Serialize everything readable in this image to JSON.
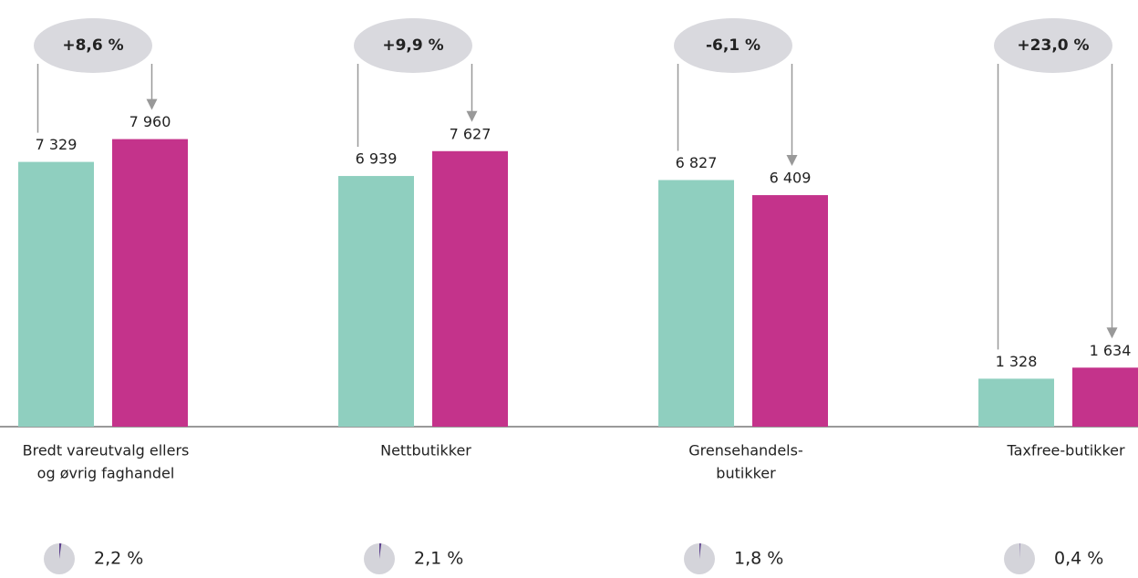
{
  "chart_data": {
    "type": "bar",
    "categories": [
      [
        "Bredt vareutvalg ellers",
        "og øvrig faghandel"
      ],
      [
        "Nettbutikker"
      ],
      [
        "Grensehandels-",
        "butikker"
      ],
      [
        "Taxfree-butikker"
      ]
    ],
    "series": [
      {
        "color": "#8fcfbf",
        "values": [
          7329,
          6939,
          6827,
          1328
        ],
        "value_labels": [
          "7 329",
          "6 939",
          "6 827",
          "1 328"
        ]
      },
      {
        "color": "#c4338b",
        "values": [
          7960,
          7627,
          6409,
          1634
        ],
        "value_labels": [
          "7 960",
          "7 627",
          "6 409",
          "1 634"
        ]
      }
    ],
    "changes": {
      "values": [
        8.6,
        9.9,
        -6.1,
        23.0
      ],
      "value_labels": [
        "+8,6 %",
        "+9,9 %",
        "-6,1 %",
        "+23,0 %"
      ]
    },
    "shares": {
      "color": "#5b3f8c",
      "values": [
        2.2,
        2.1,
        1.8,
        0.4
      ],
      "value_labels": [
        "2,2 %",
        "2,1 %",
        "1,8 %",
        "0,4 %"
      ]
    },
    "ylim": [
      0,
      8000
    ]
  }
}
